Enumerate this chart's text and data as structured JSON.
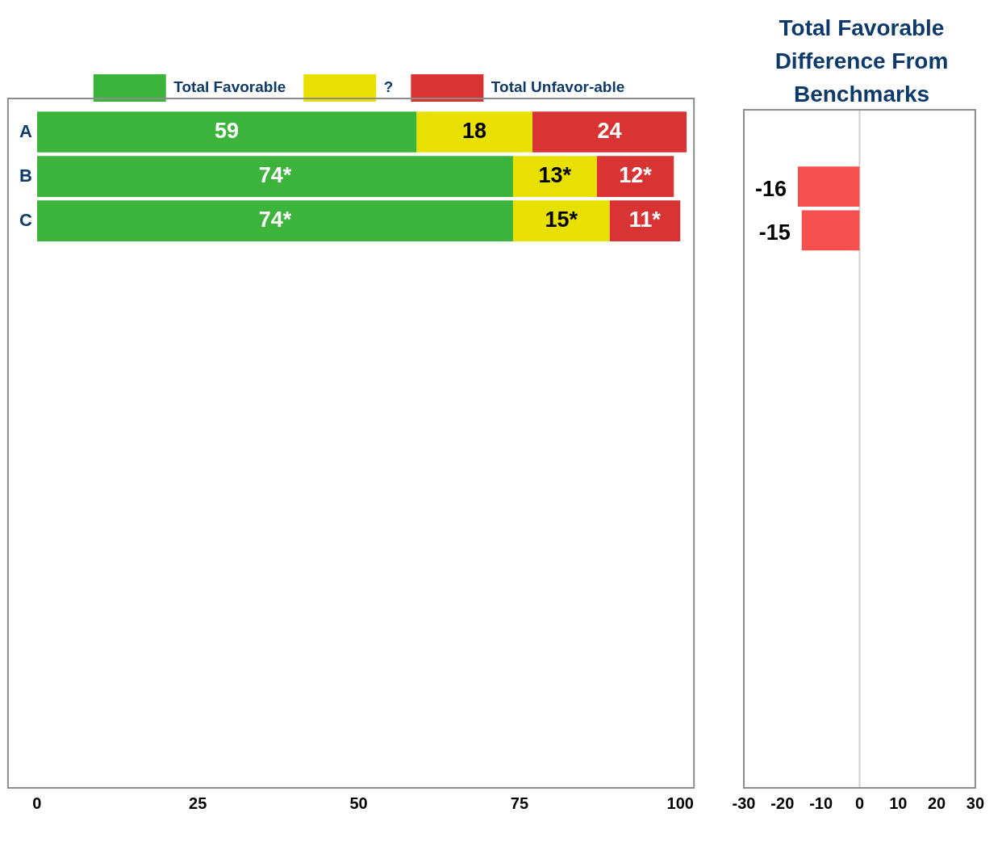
{
  "chart_data": [
    {
      "type": "bar",
      "orientation": "horizontal",
      "stacked": true,
      "categories": [
        "A",
        "B",
        "C",
        null,
        null,
        null,
        null,
        null,
        null,
        null,
        null,
        null,
        null,
        null,
        null
      ],
      "series": [
        {
          "name": "Total Favorable",
          "color": "#3cb43c",
          "values": [
            59,
            74,
            74,
            null,
            null,
            null,
            null,
            null,
            null,
            null,
            null,
            null,
            null,
            null,
            null
          ],
          "value_labels": [
            "59",
            "74*",
            "74*",
            null,
            null,
            null,
            null,
            null,
            null,
            null,
            null,
            null,
            null,
            null,
            null
          ]
        },
        {
          "name": "?",
          "color": "#e8e000",
          "values": [
            18,
            13,
            15,
            null,
            null,
            null,
            null,
            null,
            null,
            null,
            null,
            null,
            null,
            null,
            null
          ],
          "value_labels": [
            "18",
            "13*",
            "15*",
            null,
            null,
            null,
            null,
            null,
            null,
            null,
            null,
            null,
            null,
            null,
            null
          ]
        },
        {
          "name": "Total Unfavor-able",
          "color": "#d83434",
          "values": [
            24,
            12,
            11,
            null,
            null,
            null,
            null,
            null,
            null,
            null,
            null,
            null,
            null,
            null,
            null
          ],
          "value_labels": [
            "24",
            "12*",
            "11*",
            null,
            null,
            null,
            null,
            null,
            null,
            null,
            null,
            null,
            null,
            null,
            null
          ]
        }
      ],
      "xlim": [
        0,
        101
      ],
      "xticks": [
        0,
        25,
        50,
        75,
        100
      ],
      "legend": "top",
      "grid": false
    },
    {
      "type": "bar",
      "orientation": "horizontal",
      "title": "Total Favorable Difference From Benchmarks",
      "categories": [
        null,
        null,
        null,
        null,
        null,
        null,
        null,
        null,
        null,
        null,
        null,
        null,
        null,
        null,
        null
      ],
      "values": [
        null,
        -16,
        -15,
        null,
        null,
        null,
        null,
        null,
        null,
        null,
        null,
        null,
        null,
        null,
        null
      ],
      "color": "#f45050",
      "value_labels": [
        null,
        "-16",
        "-15",
        null,
        null,
        null,
        null,
        null,
        null,
        null,
        null,
        null,
        null,
        null,
        null
      ],
      "xlim": [
        -30,
        30
      ],
      "xticks": [
        -30,
        -20,
        -10,
        0,
        10,
        20,
        30
      ],
      "ref_lines": [
        {
          "axis": "x",
          "value": 0,
          "color": "#d0d0d0"
        }
      ],
      "grid": false
    }
  ]
}
